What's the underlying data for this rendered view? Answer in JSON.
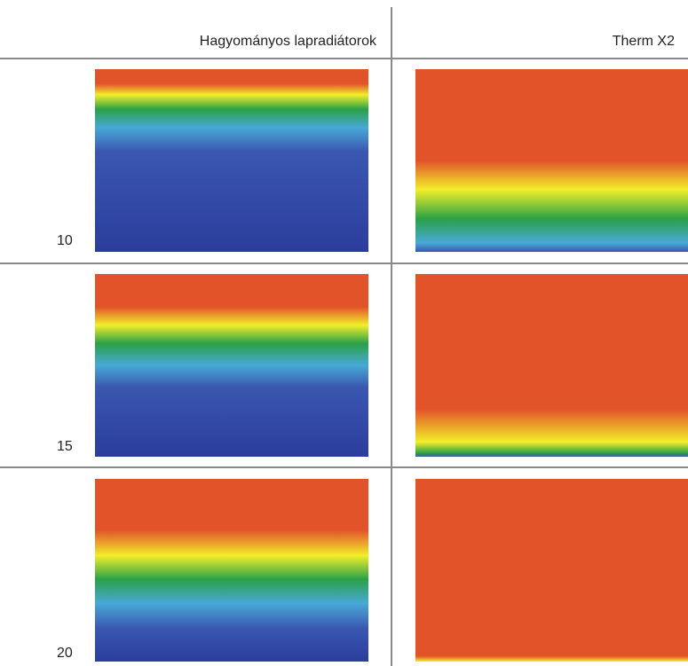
{
  "header": {
    "columns": [
      "Hagyományos lapradiátorok",
      "Therm X2"
    ]
  },
  "rows": [
    {
      "label": "10"
    },
    {
      "label": "15"
    },
    {
      "label": "20"
    }
  ]
}
